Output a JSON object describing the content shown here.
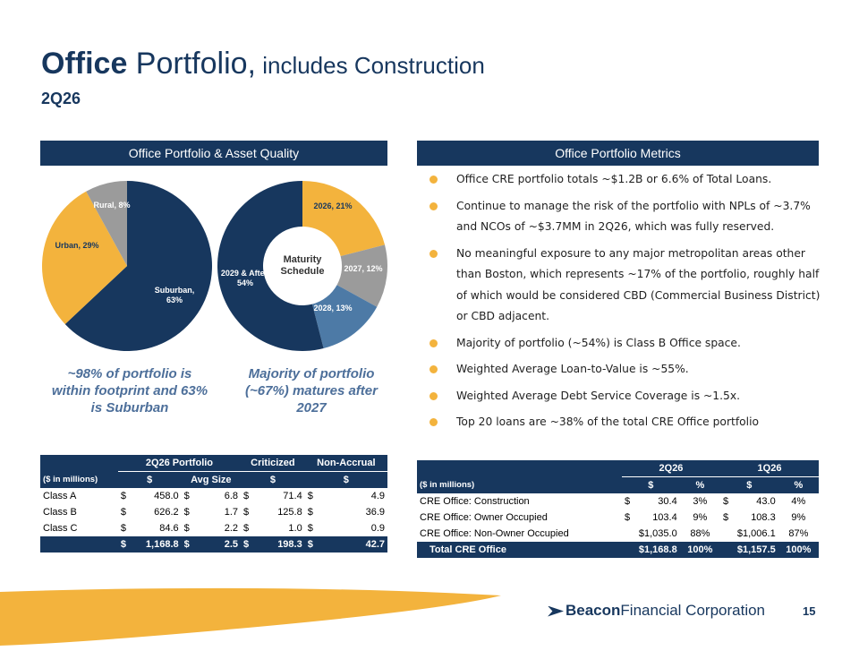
{
  "title": {
    "bold": "Office",
    "regular": " Portfolio,",
    "small": " includes Construction"
  },
  "subtitle": "2Q26",
  "left_header": "Office Portfolio & Asset Quality",
  "right_header": "Office Portfolio Metrics",
  "chart_data": [
    {
      "type": "pie",
      "title": "",
      "categories": [
        "Suburban",
        "Urban",
        "Rural"
      ],
      "values": [
        63,
        29,
        8
      ],
      "labels": [
        "Suburban, 63%",
        "Urban, 29%",
        "Rural, 8%"
      ],
      "colors": [
        "#17375e",
        "#f3b33d",
        "#9b9b9b"
      ]
    },
    {
      "type": "pie",
      "title": "Maturity Schedule",
      "categories": [
        "2026",
        "2027",
        "2028",
        "2029 & After"
      ],
      "values": [
        21,
        12,
        13,
        54
      ],
      "labels": [
        "2026, 21%",
        "2027, 12%",
        "2028, 13%",
        "2029 & After, 54%"
      ],
      "colors": [
        "#f3b33d",
        "#9b9b9b",
        "#4d7aa6",
        "#17375e"
      ]
    }
  ],
  "callouts": {
    "left": "~98% of portfolio is within footprint and 63% is Suburban",
    "right": "Majority of portfolio (~67%) matures after 2027"
  },
  "bullets": [
    "Office CRE portfolio totals ~$1.2B or 6.6% of Total Loans.",
    "Continue to manage the risk of the portfolio with NPLs of ~3.7% and NCOs of ~$3.7MM in 2Q26, which was fully reserved.",
    "No meaningful exposure to any major metropolitan areas other than Boston, which represents ~17% of the portfolio, roughly half of which would be considered CBD (Commercial Business District) or CBD adjacent.",
    "Majority of portfolio (~54%) is Class B Office space.",
    "Weighted Average Loan-to-Value is ~55%.",
    "Weighted Average Debt Service Coverage is ~1.5x.",
    "Top 20 loans are ~38% of the total CRE Office portfolio"
  ],
  "left_table": {
    "group_headers": [
      "2Q26 Portfolio",
      "Criticized",
      "Non-Accrual"
    ],
    "sub_headers": [
      "($ in millions)",
      "$",
      "Avg Size",
      "$",
      "$"
    ],
    "rows": [
      {
        "label": "Class A",
        "portfolio": "458.0",
        "avg": "6.8",
        "criticized": "71.4",
        "nonaccrual": "4.9"
      },
      {
        "label": "Class B",
        "portfolio": "626.2",
        "avg": "1.7",
        "criticized": "125.8",
        "nonaccrual": "36.9"
      },
      {
        "label": "Class C",
        "portfolio": "84.6",
        "avg": "2.2",
        "criticized": "1.0",
        "nonaccrual": "0.9"
      }
    ],
    "total": {
      "label": "",
      "portfolio": "1,168.8",
      "avg": "2.5",
      "criticized": "198.3",
      "nonaccrual": "42.7"
    },
    "currency": "$"
  },
  "right_table": {
    "group_headers": [
      "2Q26",
      "1Q26"
    ],
    "sub_headers": [
      "($ in millions)",
      "$",
      "%",
      "$",
      "%"
    ],
    "rows": [
      {
        "label": "CRE Office: Construction",
        "q2_cur": "$",
        "q2": "30.4",
        "q2p": "3%",
        "q1_cur": "$",
        "q1": "43.0",
        "q1p": "4%"
      },
      {
        "label": "CRE Office: Owner Occupied",
        "q2_cur": "$",
        "q2": "103.4",
        "q2p": "9%",
        "q1_cur": "$",
        "q1": "108.3",
        "q1p": "9%"
      },
      {
        "label": "CRE Office: Non-Owner Occupied",
        "q2_cur": "",
        "q2": "$1,035.0",
        "q2p": "88%",
        "q1_cur": "",
        "q1": "$1,006.1",
        "q1p": "87%"
      }
    ],
    "total": {
      "label": "Total CRE Office",
      "q2": "$1,168.8",
      "q2p": "100%",
      "q1": "$1,157.5",
      "q1p": "100%"
    }
  },
  "logo": {
    "bold": "Beacon",
    "regular": "Financial Corporation"
  },
  "page_number": "15"
}
